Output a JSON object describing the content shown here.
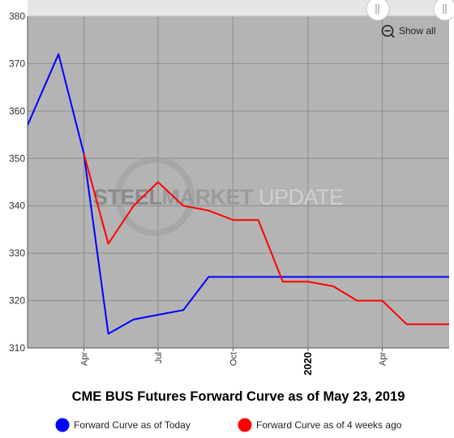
{
  "chart_data": {
    "type": "line",
    "title": "CME BUS Futures Forward Curve as of May 23, 2019",
    "xlabel": "",
    "ylabel": "",
    "x_range": [
      "2019-01-22",
      "2020-06-22"
    ],
    "ylim": [
      310,
      380
    ],
    "y_ticks": [
      310,
      320,
      330,
      340,
      350,
      360,
      370,
      380
    ],
    "x_ticks": [
      {
        "date": "2019-04-01",
        "label": "Apr",
        "bold": false
      },
      {
        "date": "2019-07-01",
        "label": "Jul",
        "bold": false
      },
      {
        "date": "2019-10-01",
        "label": "Oct",
        "bold": false
      },
      {
        "date": "2020-01-01",
        "label": "2020",
        "bold": true
      },
      {
        "date": "2020-04-01",
        "label": "Apr",
        "bold": false
      }
    ],
    "grid": true,
    "legend_position": "bottom",
    "series": [
      {
        "name": "Forward Curve as of Today",
        "color": "#0000ff",
        "points": [
          {
            "x": "2019-01-22",
            "y": 357
          },
          {
            "x": "2019-03-01",
            "y": 372
          },
          {
            "x": "2019-04-01",
            "y": 351
          },
          {
            "x": "2019-05-01",
            "y": 313
          },
          {
            "x": "2019-06-01",
            "y": 316
          },
          {
            "x": "2019-07-01",
            "y": 317
          },
          {
            "x": "2019-08-01",
            "y": 318
          },
          {
            "x": "2019-09-01",
            "y": 325
          },
          {
            "x": "2019-10-01",
            "y": 325
          },
          {
            "x": "2019-11-01",
            "y": 325
          },
          {
            "x": "2019-12-01",
            "y": 325
          },
          {
            "x": "2020-01-01",
            "y": 325
          },
          {
            "x": "2020-02-01",
            "y": 325
          },
          {
            "x": "2020-03-01",
            "y": 325
          },
          {
            "x": "2020-04-01",
            "y": 325
          },
          {
            "x": "2020-05-01",
            "y": 325
          },
          {
            "x": "2020-06-22",
            "y": 325
          }
        ]
      },
      {
        "name": "Forward Curve as of 4 weeks ago",
        "color": "#ff0000",
        "points": [
          {
            "x": "2019-04-01",
            "y": 351
          },
          {
            "x": "2019-05-01",
            "y": 332
          },
          {
            "x": "2019-06-01",
            "y": 340
          },
          {
            "x": "2019-07-01",
            "y": 345
          },
          {
            "x": "2019-08-01",
            "y": 340
          },
          {
            "x": "2019-09-01",
            "y": 339
          },
          {
            "x": "2019-10-01",
            "y": 337
          },
          {
            "x": "2019-11-01",
            "y": 337
          },
          {
            "x": "2019-12-01",
            "y": 324
          },
          {
            "x": "2020-01-01",
            "y": 324
          },
          {
            "x": "2020-02-01",
            "y": 323
          },
          {
            "x": "2020-03-01",
            "y": 320
          },
          {
            "x": "2020-04-01",
            "y": 320
          },
          {
            "x": "2020-05-01",
            "y": 315
          },
          {
            "x": "2020-06-22",
            "y": 315
          }
        ]
      }
    ]
  },
  "controls": {
    "show_all_label": "Show all",
    "show_all_icon": "zoom-out-icon",
    "navigator_handle_icon": "grip-lines-icon"
  },
  "watermark": {
    "text": "STEELMARKET UPDATE",
    "colors": {
      "steel": "#8a8a8a",
      "market": "#9a9a9a",
      "update": "#cfcfcf"
    }
  },
  "colors": {
    "plot_background": "#b4b4b4",
    "grid": "#8c8c8c",
    "navigator_band": "#e6e6e6"
  }
}
